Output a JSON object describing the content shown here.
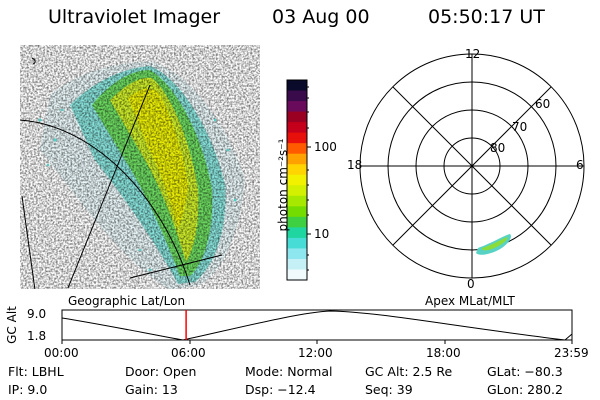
{
  "header": {
    "instrument": "Ultraviolet Imager",
    "date": "03 Aug 00",
    "time": "05:50:17 UT"
  },
  "colorbar": {
    "label": "photon cm⁻²s⁻¹",
    "ticks": [
      "100",
      "10"
    ],
    "colors": [
      "#0a0a2a",
      "#3a0b4a",
      "#6a0a5a",
      "#990022",
      "#c4001a",
      "#e8100a",
      "#ff5a00",
      "#ffa100",
      "#ffd400",
      "#f2f200",
      "#d2f000",
      "#a6e800",
      "#74dc00",
      "#3ed040",
      "#20d6a0",
      "#48dcd6",
      "#8ee6ee",
      "#c4f0f6",
      "#f0fafc"
    ]
  },
  "map_left": {
    "caption": "Geographic Lat/Lon"
  },
  "map_right": {
    "caption": "Apex MLat/MLT",
    "mlt_labels": {
      "top": "12",
      "left": "18",
      "right": "6",
      "bottom": "0"
    },
    "lat_labels": [
      "60",
      "70",
      "80"
    ]
  },
  "altitude_plot": {
    "ylabel": "GC Alt",
    "yticks": [
      "9.0",
      "1.8"
    ],
    "xticks": [
      "00:00",
      "06:00",
      "12:00",
      "18:00",
      "23:59"
    ],
    "current_time_hours": 5.84
  },
  "info": {
    "flt": "Flt: LBHL",
    "ip": "IP:  9.0",
    "door": "Door: Open",
    "gain": "Gain: 13",
    "mode": "Mode: Normal",
    "dsp": "Dsp:  −12.4",
    "gcalt": "GC Alt: 2.5 Re",
    "seq": "Seq: 39",
    "glat": "GLat: −80.3",
    "glon": "GLon: 280.2"
  }
}
